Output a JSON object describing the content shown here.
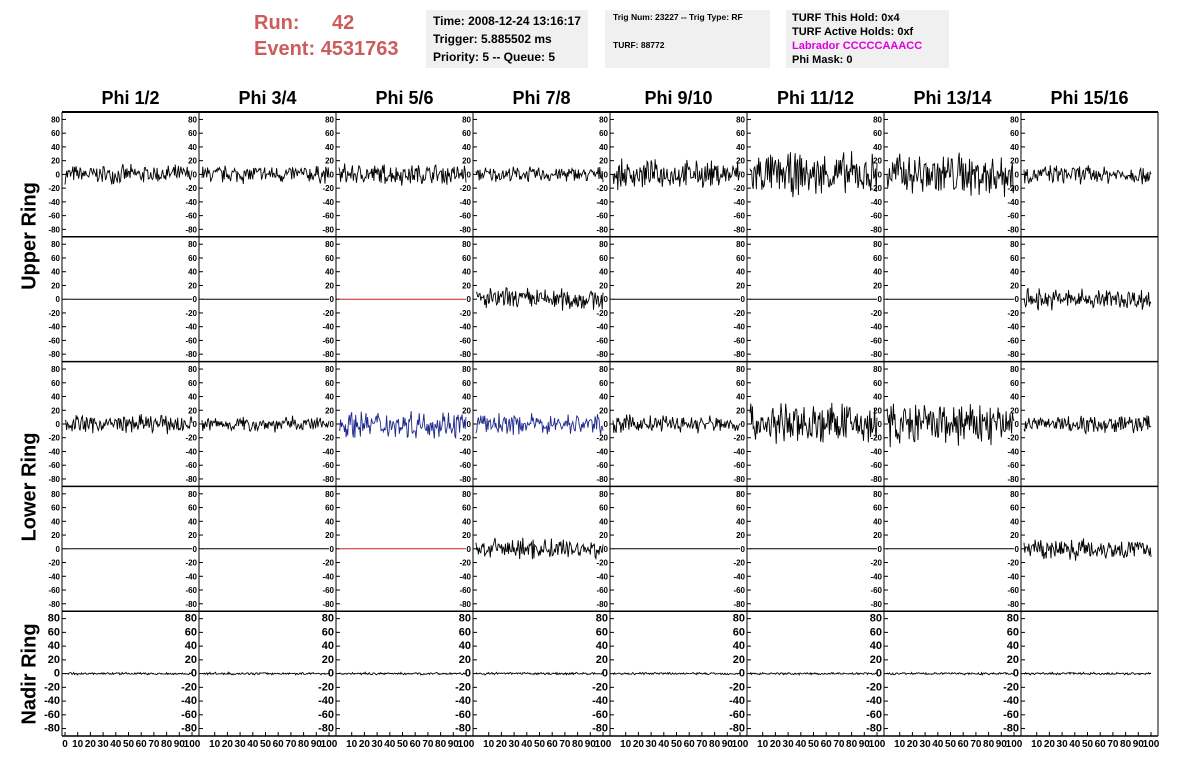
{
  "header": {
    "run_label": "Run:",
    "run_value": "42",
    "event_label": "Event:",
    "event_value": "4531763"
  },
  "info": {
    "time": "Time: 2008-12-24 13:16:17",
    "trigger": "Trigger: 5.885502 ms",
    "priority": "Priority: 5 -- Queue: 5",
    "trig_num": "Trig Num: 23227 -- Trig Type: RF",
    "turf": "TURF: 88772",
    "turf_hold": "TURF This Hold: 0x4",
    "turf_active": "TURF Active Holds: 0xf",
    "labrador": "Labrador CCCCCAAACC",
    "phi_mask": "Phi Mask: 0"
  },
  "colors": {
    "header": "#cd5c5c",
    "labrador": "#e000e0",
    "trace": "#000000",
    "highlight_trace": "#1f2a8a",
    "zero_trace": "#cc2222",
    "info_bg": "#f0f0f0"
  },
  "chart_data": {
    "type": "line",
    "columns": [
      "Phi 1/2",
      "Phi 3/4",
      "Phi 5/6",
      "Phi 7/8",
      "Phi 9/10",
      "Phi 11/12",
      "Phi 13/14",
      "Phi 15/16"
    ],
    "rows": [
      "Upper Ring",
      "Upper Ring",
      "Lower Ring",
      "Lower Ring",
      "Nadir Ring"
    ],
    "row_labels": [
      "Upper Ring",
      "Lower Ring",
      "Nadir Ring"
    ],
    "xlim": [
      0,
      100
    ],
    "ylim": [
      -85,
      85
    ],
    "yticks": [
      "80",
      "60",
      "40",
      "20",
      "0",
      "-20",
      "-40",
      "-60",
      "-80"
    ],
    "xticks_first": [
      "0",
      "10",
      "20",
      "30",
      "40",
      "50",
      "60",
      "70",
      "80",
      "90",
      "100"
    ],
    "xticks_other": [
      "10",
      "20",
      "30",
      "40",
      "50",
      "60",
      "70",
      "80",
      "90",
      "100"
    ],
    "amplitude": [
      [
        12,
        12,
        14,
        10,
        18,
        28,
        30,
        12
      ],
      [
        0,
        0,
        0,
        15,
        0,
        0,
        0,
        14
      ],
      [
        12,
        10,
        18,
        13,
        12,
        28,
        28,
        12
      ],
      [
        0,
        0,
        0,
        14,
        0,
        0,
        0,
        14
      ],
      [
        1.5,
        1.5,
        1.5,
        1.5,
        1.5,
        1.5,
        1.5,
        1.5
      ]
    ],
    "trace_color": [
      [
        "black",
        "black",
        "black",
        "black",
        "black",
        "black",
        "black",
        "black"
      ],
      [
        "black",
        "black",
        "red",
        "black",
        "black",
        "black",
        "black",
        "black"
      ],
      [
        "black",
        "black",
        "blue",
        "blue",
        "black",
        "black",
        "black",
        "black"
      ],
      [
        "black",
        "black",
        "red",
        "black",
        "black",
        "black",
        "black",
        "black"
      ],
      [
        "black",
        "black",
        "black",
        "black",
        "black",
        "black",
        "black",
        "black"
      ]
    ]
  }
}
